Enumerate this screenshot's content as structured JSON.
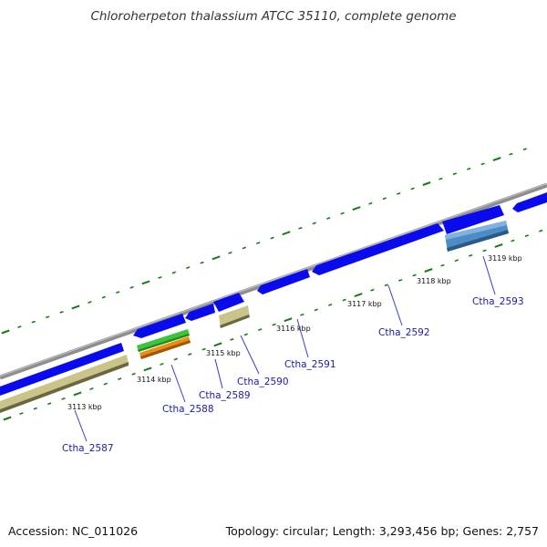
{
  "title": "Chloroherpeton thalassium ATCC 35110, complete genome",
  "accession": "Accession: NC_011026",
  "summary": "Topology: circular; Length: 3,293,456 bp; Genes: 2,757",
  "colors": {
    "backbone": "#888888",
    "cds": "#0a0aee",
    "cds_alt": "#4d8cc4",
    "misc": "#c9c48a",
    "rrna_green": "#3cc43c",
    "rrna_orange": "#f08c10",
    "tick": "#1a7a1a",
    "label_line": "#3a3ad6"
  },
  "kbp_labels": [
    "3113 kbp",
    "3114 kbp",
    "3115 kbp",
    "3116 kbp",
    "3117 kbp",
    "3118 kbp",
    "3119 kbp"
  ],
  "gene_labels": [
    "Ctha_2587",
    "Ctha_2588",
    "Ctha_2589",
    "Ctha_2590",
    "Ctha_2591",
    "Ctha_2592",
    "Ctha_2593"
  ]
}
